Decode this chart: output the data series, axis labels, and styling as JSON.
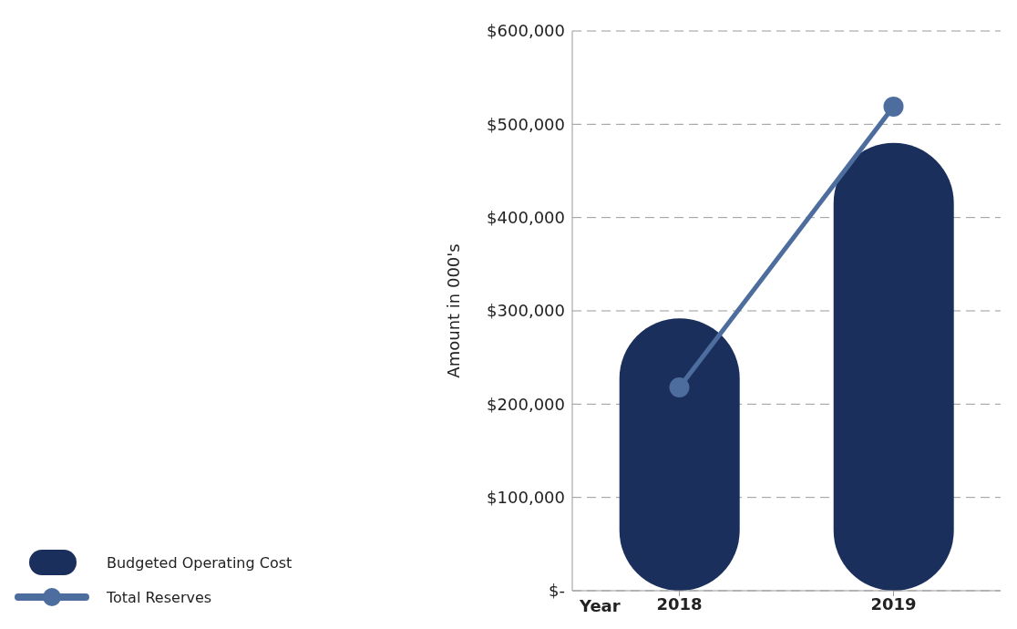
{
  "chart_data": {
    "type": "bar",
    "xlabel": "Year",
    "ylabel": "Amount in 000's",
    "categories": [
      "2018",
      "2019"
    ],
    "series": [
      {
        "name": "Budgeted Operating Cost",
        "color": "#1b2f5c",
        "values": [
          292000,
          480000
        ]
      },
      {
        "name": "Total Reserves",
        "type": "line",
        "color": "#4d6d9e",
        "values": [
          218000,
          519000
        ]
      }
    ],
    "ylim": [
      0,
      600000
    ],
    "yticks": [
      {
        "value": 0,
        "label": "$-"
      },
      {
        "value": 100000,
        "label": "$100,000"
      },
      {
        "value": 200000,
        "label": "$200,000"
      },
      {
        "value": 300000,
        "label": "$300,000"
      },
      {
        "value": 400000,
        "label": "$400,000"
      },
      {
        "value": 500000,
        "label": "$500,000"
      },
      {
        "value": 600000,
        "label": "$600,000"
      }
    ],
    "grid": "y",
    "legend": "bottom left",
    "marker": "circle",
    "line_style": "solid"
  }
}
